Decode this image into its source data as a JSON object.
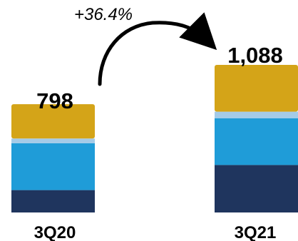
{
  "chart_data": {
    "type": "bar",
    "stacked": true,
    "categories": [
      "3Q20",
      "3Q21"
    ],
    "totals": [
      "798",
      "1,088"
    ],
    "growth_annotation": "+36.4%",
    "ylim": [
      0,
      1088
    ],
    "series": [
      {
        "color": "#1f355e",
        "values": [
          165,
          350
        ]
      },
      {
        "color": "#1f9cd8",
        "values": [
          345,
          345
        ]
      },
      {
        "color": "#a4cbe8",
        "values": [
          35,
          48
        ]
      },
      {
        "color": "#d4a418",
        "values": [
          253,
          345
        ]
      }
    ],
    "legend": "none",
    "grid": false
  }
}
